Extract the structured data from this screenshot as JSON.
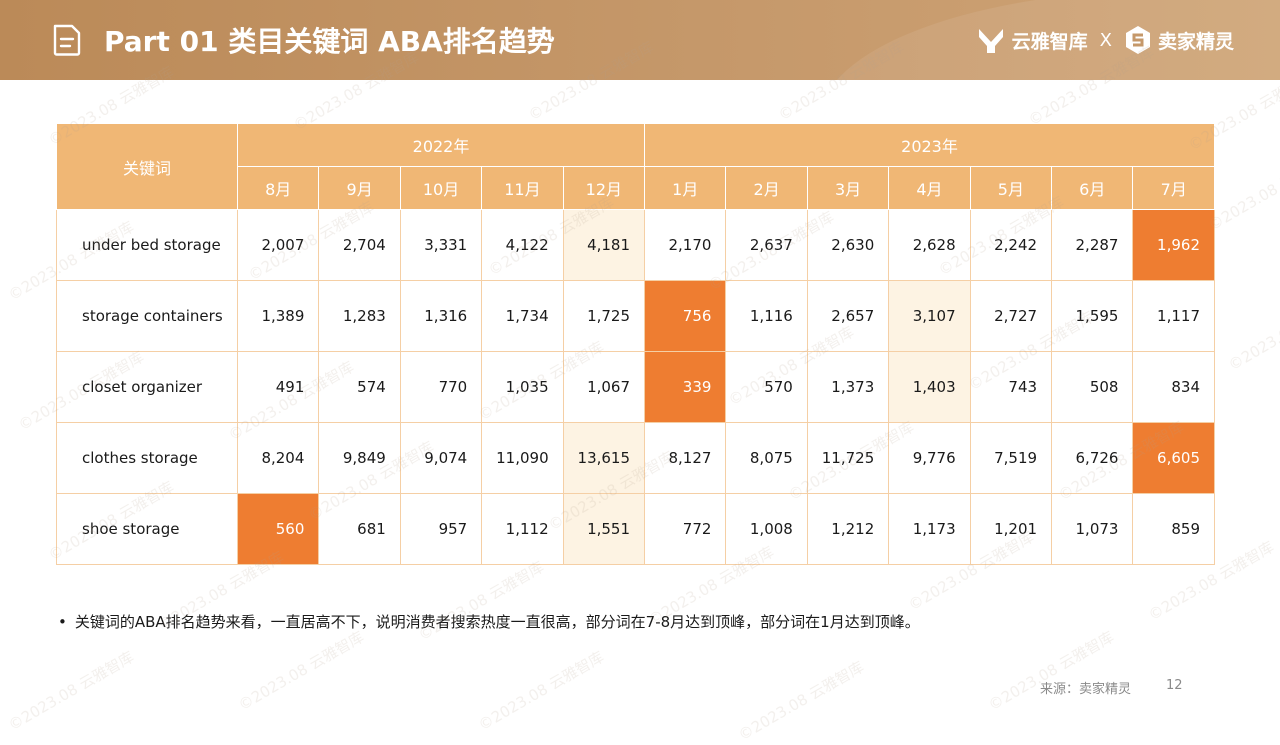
{
  "header": {
    "title": "Part 01 类目关键词 ABA排名趋势",
    "brand1": "云雅智库",
    "separator": "X",
    "brand2": "卖家精灵"
  },
  "table": {
    "keyword_header": "关键词",
    "years": [
      "2022年",
      "2023年"
    ],
    "months": [
      "8月",
      "9月",
      "10月",
      "11月",
      "12月",
      "1月",
      "2月",
      "3月",
      "4月",
      "5月",
      "6月",
      "7月"
    ],
    "rows": [
      {
        "keyword": "under bed storage",
        "values": [
          "2,007",
          "2,704",
          "3,331",
          "4,122",
          "4,181",
          "2,170",
          "2,637",
          "2,630",
          "2,628",
          "2,242",
          "2,287",
          "1,962"
        ]
      },
      {
        "keyword": "storage containers",
        "values": [
          "1,389",
          "1,283",
          "1,316",
          "1,734",
          "1,725",
          "756",
          "1,116",
          "2,657",
          "3,107",
          "2,727",
          "1,595",
          "1,117"
        ]
      },
      {
        "keyword": "closet organizer",
        "values": [
          "491",
          "574",
          "770",
          "1,035",
          "1,067",
          "339",
          "570",
          "1,373",
          "1,403",
          "743",
          "508",
          "834"
        ]
      },
      {
        "keyword": "clothes storage",
        "values": [
          "8,204",
          "9,849",
          "9,074",
          "11,090",
          "13,615",
          "8,127",
          "8,075",
          "11,725",
          "9,776",
          "7,519",
          "6,726",
          "6,605"
        ]
      },
      {
        "keyword": "shoe storage",
        "values": [
          "560",
          "681",
          "957",
          "1,112",
          "1,551",
          "772",
          "1,008",
          "1,212",
          "1,173",
          "1,201",
          "1,073",
          "859"
        ]
      }
    ],
    "highlight_colors": {
      "dark": "#ee7d31",
      "light": "#fdf3e3",
      "header": "#f0b775"
    }
  },
  "note": {
    "bullet": "•",
    "text": "关键词的ABA排名趋势来看，一直居高不下，说明消费者搜索热度一直很高，部分词在7-8月达到顶峰，部分词在1月达到顶峰。"
  },
  "footer": {
    "source": "来源：卖家精灵",
    "page": "12"
  },
  "watermark": "©2023.08  云雅智库"
}
